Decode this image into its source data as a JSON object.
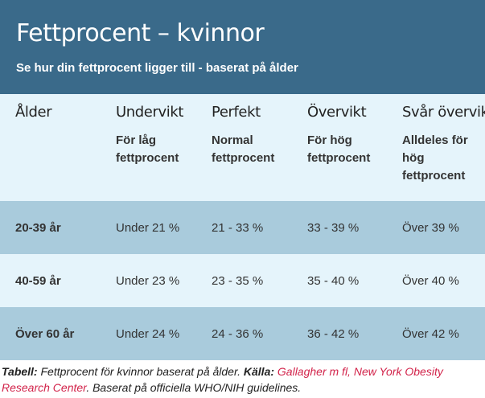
{
  "header": {
    "title": "Fettprocent – kvinnor",
    "subtitle": "Se hur din fettprocent ligger till - baserat på ålder"
  },
  "columns": [
    {
      "label": "Ålder",
      "sub": ""
    },
    {
      "label": "Undervikt",
      "sub": "För låg fettprocent"
    },
    {
      "label": "Perfekt",
      "sub": "Normal fettprocent"
    },
    {
      "label": "Övervikt",
      "sub": "För hög fettprocent"
    },
    {
      "label": "Svår övervikt",
      "sub": "Alldeles för hög fettprocent"
    }
  ],
  "rows": [
    {
      "age": "20-39 år",
      "under": "Under 21 %",
      "perfect": "21 - 33 %",
      "over": "33 - 39 %",
      "severe": "Över 39 %"
    },
    {
      "age": "40-59 år",
      "under": "Under 23 %",
      "perfect": "23 - 35 %",
      "over": "35 - 40 %",
      "severe": "Över 40 %"
    },
    {
      "age": "Över 60 år",
      "under": "Under 24 %",
      "perfect": "24 - 36 %",
      "over": "36 - 42 %",
      "severe": "Över 42 %"
    }
  ],
  "caption": {
    "table_label": "Tabell:",
    "table_text": " Fettprocent för kvinnor baserat på ålder. ",
    "source_label": "Källa:",
    "source_link": "Gallagher m fl, New York Obesity Research Center",
    "source_tail": ". Baserat på officiella WHO/NIH guidelines."
  },
  "colors": {
    "header_bg": "#3a6a8a",
    "light_row": "#e5f4fb",
    "dark_row": "#a9cbdc",
    "link": "#d2234a"
  }
}
